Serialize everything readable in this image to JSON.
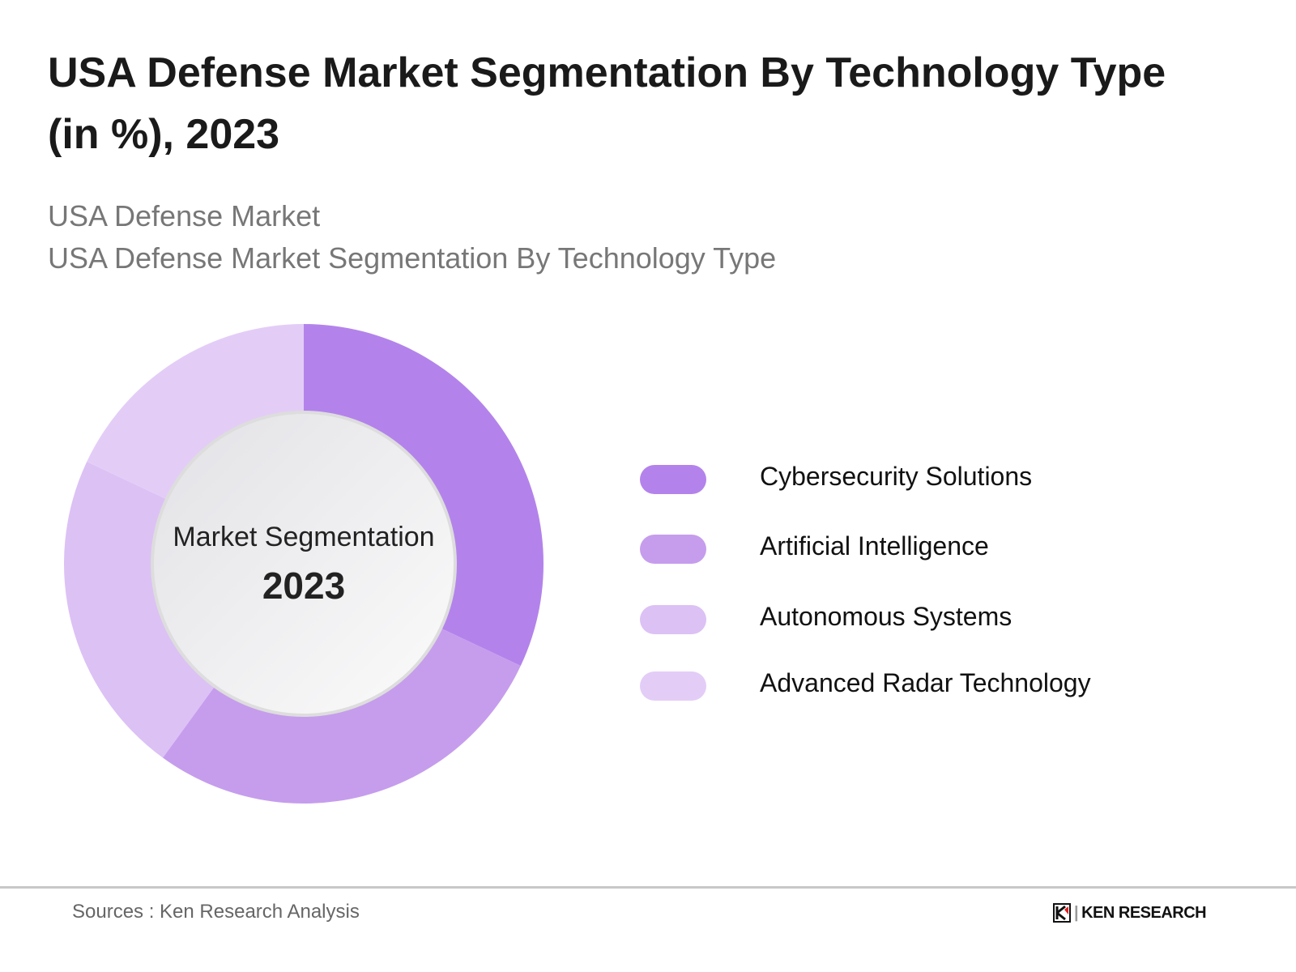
{
  "title": "USA Defense Market Segmentation By Technology Type (in %), 2023",
  "subtitle_lines": [
    "USA Defense Market",
    "USA Defense Market Segmentation By Technology Type"
  ],
  "center": {
    "label": "Market Segmentation",
    "year": "2023"
  },
  "chart_data": {
    "type": "pie",
    "variant": "donut",
    "title": "USA Defense Market Segmentation By Technology Type (in %), 2023",
    "categories": [
      "Cybersecurity Solutions",
      "Artificial Intelligence",
      "Autonomous Systems",
      "Advanced Radar Technology"
    ],
    "values": [
      32,
      28,
      22,
      18
    ],
    "colors": [
      "#b383eb",
      "#c69ded",
      "#dcc1f5",
      "#e3cdf7"
    ],
    "legend_position": "right"
  },
  "footer": {
    "source": "Sources : Ken Research Analysis",
    "logo_text": "KEN RESEARCH"
  }
}
